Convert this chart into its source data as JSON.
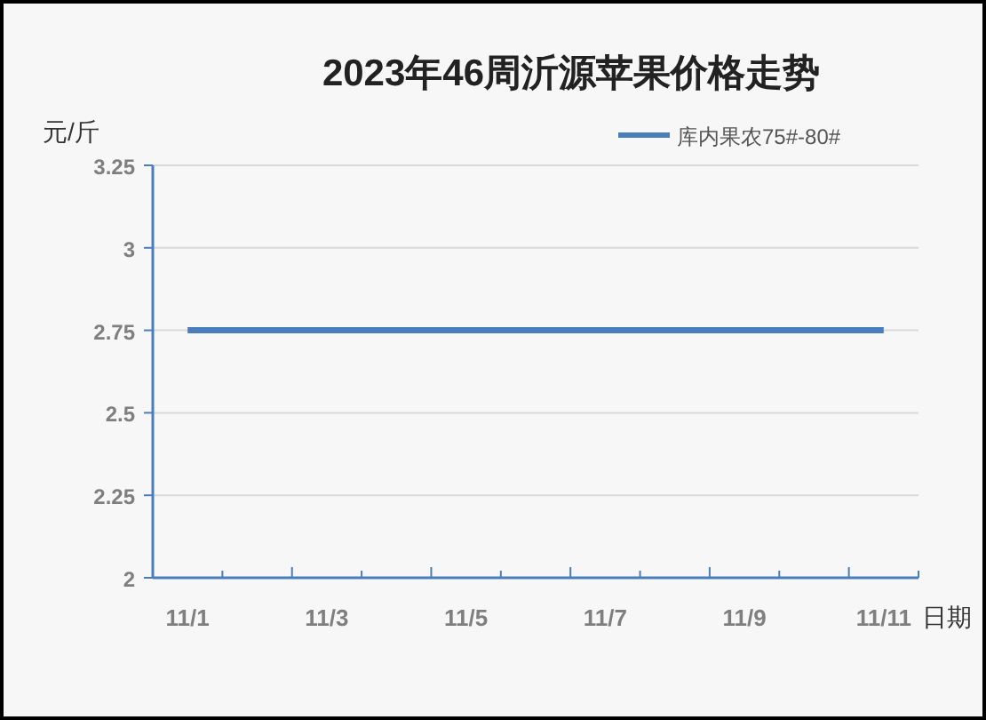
{
  "chart_data": {
    "type": "line",
    "title": "2023年46周沂源苹果价格走势",
    "xlabel": "日期",
    "ylabel": "元/斤",
    "categories": [
      "11/1",
      null,
      "11/3",
      null,
      "11/5",
      null,
      "11/7",
      null,
      "11/9",
      null,
      "11/11"
    ],
    "series": [
      {
        "name": "库内果农75#-80#",
        "color": "#4a7ebb",
        "values": [
          2.75,
          2.75,
          2.75,
          2.75,
          2.75,
          2.75,
          2.75,
          2.75,
          2.75,
          2.75,
          2.75
        ]
      }
    ],
    "ylim": [
      2,
      3.25
    ],
    "yticks": [
      2,
      2.25,
      2.5,
      2.75,
      3,
      3.25
    ],
    "grid": "y",
    "legend": "top right"
  }
}
